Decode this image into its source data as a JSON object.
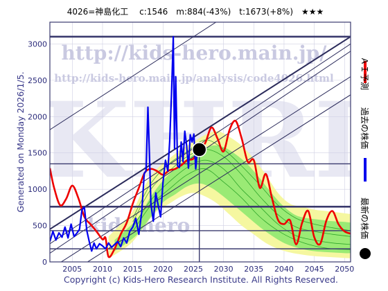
{
  "header": {
    "title": "4026=神島化工　 c:1546　m:884(-43%)　t:1673(+8%)　★★★"
  },
  "footer": {
    "copyright": "Copyright (c) Kids-Hero Research Institute. All Rights Reserved."
  },
  "side": {
    "generated": "Generated on Monday 2026/1/5."
  },
  "watermark": {
    "url_main": "http://kids-hero.main.jp/",
    "url_analysis": "http://kids-hero.main.jp/analysis/code4026.html",
    "big": "KHRI",
    "lower": "kids-hero"
  },
  "legend": {
    "items": [
      {
        "label": "ＡＩ予測",
        "color": "#ee0000",
        "marker": "line"
      },
      {
        "label": "過去の株価",
        "color": "#0000ee",
        "marker": "line"
      },
      {
        "label": "最新の株価",
        "color": "#000000",
        "marker": "dot"
      }
    ]
  },
  "colors": {
    "ai_prediction": "#ee0000",
    "past_price": "#0000ee",
    "latest": "#000000",
    "band_light": "#f5f7a0",
    "band_green": "#90e870",
    "band_lines": "#1f9a1f",
    "frame": "#3a3a6e",
    "trend_lines": "#2a2a5a"
  },
  "chart_data": {
    "type": "line",
    "title": "4026=神島化工　 c:1546　m:884(-43%)　t:1673(+8%)　★★★",
    "xlabel": "",
    "ylabel": "",
    "xlim": [
      2001.3,
      2051.0
    ],
    "ylim": [
      0,
      3300
    ],
    "grid": true,
    "x_ticks": [
      2005,
      2010,
      2015,
      2020,
      2025,
      2030,
      2035,
      2040,
      2045,
      2050
    ],
    "y_ticks": [
      0,
      500,
      1000,
      1500,
      2000,
      2500,
      3000
    ],
    "latest_point": {
      "x": 2026.0,
      "y": 1546
    },
    "vertical_marker_x": 2026.0,
    "horizontal_levels": [
      3100,
      1350,
      760,
      430,
      180
    ],
    "trend_lines": [
      {
        "from": [
          2001.3,
          1820
        ],
        "to": [
          2051.0,
          4500
        ]
      },
      {
        "from": [
          2001.3,
          450
        ],
        "to": [
          2051.0,
          3100
        ]
      },
      {
        "from": [
          2001.3,
          250
        ],
        "to": [
          2051.0,
          3000
        ]
      },
      {
        "from": [
          2001.3,
          120
        ],
        "to": [
          2051.0,
          2900
        ]
      },
      {
        "from": [
          2001.3,
          -100
        ],
        "to": [
          2051.0,
          2550
        ]
      },
      {
        "from": [
          2001.3,
          -330
        ],
        "to": [
          2051.0,
          2300
        ]
      }
    ],
    "series": [
      {
        "name": "ＡＩ予測",
        "color": "#ee0000",
        "x": [
          2001.3,
          2002,
          2003,
          2004,
          2005,
          2006,
          2007,
          2008,
          2009,
          2010,
          2010.5,
          2011,
          2012,
          2013,
          2014,
          2015,
          2016,
          2017,
          2018,
          2019,
          2020,
          2021,
          2022,
          2023,
          2024,
          2025,
          2026,
          2027,
          2028,
          2029,
          2030,
          2031,
          2032,
          2033,
          2034,
          2035,
          2036,
          2037,
          2038,
          2039,
          2040,
          2041,
          2042,
          2043,
          2044,
          2045,
          2046,
          2047,
          2048,
          2049,
          2050,
          2051
        ],
        "y": [
          1290,
          1020,
          780,
          870,
          1050,
          880,
          620,
          520,
          420,
          310,
          330,
          70,
          180,
          380,
          540,
          800,
          1020,
          1230,
          1280,
          1250,
          1200,
          1260,
          1280,
          1330,
          1400,
          1420,
          1540,
          1640,
          1850,
          1700,
          1520,
          1820,
          1940,
          1700,
          1380,
          1400,
          1020,
          1210,
          880,
          580,
          520,
          570,
          240,
          540,
          700,
          340,
          250,
          570,
          700,
          520,
          420,
          390
        ]
      },
      {
        "name": "過去の株価",
        "color": "#0000ee",
        "x": [
          2001.3,
          2001.8,
          2002.3,
          2002.8,
          2003.3,
          2003.8,
          2004.3,
          2004.8,
          2005.3,
          2005.8,
          2006.2,
          2006.6,
          2007.0,
          2007.4,
          2007.8,
          2008.2,
          2008.6,
          2009.0,
          2009.5,
          2010.0,
          2010.5,
          2011.0,
          2011.5,
          2012.0,
          2012.5,
          2013.0,
          2013.5,
          2014.0,
          2014.5,
          2015.0,
          2015.5,
          2016.0,
          2016.5,
          2016.9,
          2017.2,
          2017.5,
          2017.8,
          2018.0,
          2018.4,
          2018.8,
          2019.2,
          2019.6,
          2020.0,
          2020.4,
          2020.8,
          2021.1,
          2021.4,
          2021.7,
          2021.9,
          2022.1,
          2022.4,
          2022.7,
          2023.0,
          2023.3,
          2023.6,
          2023.9,
          2024.2,
          2024.5,
          2024.8,
          2025.1,
          2025.4,
          2025.7,
          2026.0
        ],
        "y": [
          280,
          420,
          300,
          400,
          340,
          480,
          330,
          520,
          350,
          400,
          450,
          720,
          750,
          430,
          280,
          150,
          260,
          180,
          250,
          220,
          180,
          260,
          200,
          240,
          280,
          210,
          330,
          260,
          420,
          480,
          600,
          380,
          700,
          1220,
          1250,
          2130,
          1350,
          800,
          560,
          950,
          780,
          620,
          1100,
          1400,
          1250,
          1660,
          2300,
          3100,
          1560,
          2550,
          1320,
          1300,
          1650,
          1380,
          1800,
          1600,
          1290,
          1750,
          1650,
          1760,
          1280,
          1560,
          1546
        ]
      }
    ],
    "band_members": [
      [
        2015,
        550,
        2018,
        1000,
        2021,
        1250,
        2024,
        1450,
        2027,
        1550,
        2030,
        1450,
        2033,
        1200,
        2036,
        900,
        2039,
        650,
        2042,
        480,
        2045,
        420,
        2048,
        380,
        2051,
        350
      ],
      [
        2015,
        480,
        2018,
        850,
        2021,
        1100,
        2024,
        1300,
        2027,
        1400,
        2030,
        1280,
        2033,
        1000,
        2036,
        760,
        2039,
        520,
        2042,
        360,
        2045,
        300,
        2048,
        260,
        2051,
        240
      ],
      [
        2015,
        420,
        2018,
        780,
        2021,
        1000,
        2024,
        1200,
        2027,
        1280,
        2030,
        1100,
        2033,
        880,
        2036,
        620,
        2039,
        430,
        2042,
        300,
        2045,
        220,
        2048,
        180,
        2051,
        170
      ],
      [
        2015,
        600,
        2018,
        1080,
        2021,
        1350,
        2024,
        1520,
        2027,
        1680,
        2030,
        1550,
        2033,
        1320,
        2036,
        1060,
        2039,
        780,
        2042,
        600,
        2045,
        520,
        2048,
        470,
        2051,
        430
      ]
    ],
    "band_outer": {
      "x": [
        2011,
        2013,
        2015,
        2017,
        2019,
        2021,
        2023,
        2025,
        2027,
        2029,
        2031,
        2033,
        2035,
        2037,
        2039,
        2041,
        2043,
        2045,
        2047,
        2049,
        2051
      ],
      "low": [
        50,
        150,
        280,
        500,
        700,
        800,
        900,
        950,
        900,
        800,
        650,
        500,
        380,
        260,
        180,
        130,
        100,
        80,
        70,
        60,
        50
      ],
      "high": [
        350,
        520,
        700,
        1050,
        1280,
        1420,
        1550,
        1650,
        1750,
        1800,
        1720,
        1600,
        1420,
        1200,
        950,
        800,
        760,
        720,
        700,
        680,
        660
      ]
    },
    "band_inner": {
      "x": [
        2012,
        2014,
        2016,
        2018,
        2020,
        2022,
        2024,
        2026,
        2028,
        2030,
        2032,
        2034,
        2036,
        2038,
        2040,
        2042,
        2044,
        2046,
        2048,
        2050,
        2051
      ],
      "low": [
        150,
        260,
        400,
        620,
        820,
        930,
        1040,
        1080,
        1020,
        900,
        760,
        620,
        480,
        360,
        260,
        200,
        160,
        140,
        130,
        120,
        120
      ],
      "high": [
        300,
        450,
        620,
        900,
        1120,
        1280,
        1420,
        1520,
        1600,
        1580,
        1480,
        1340,
        1150,
        940,
        760,
        640,
        600,
        580,
        560,
        550,
        540
      ]
    }
  }
}
